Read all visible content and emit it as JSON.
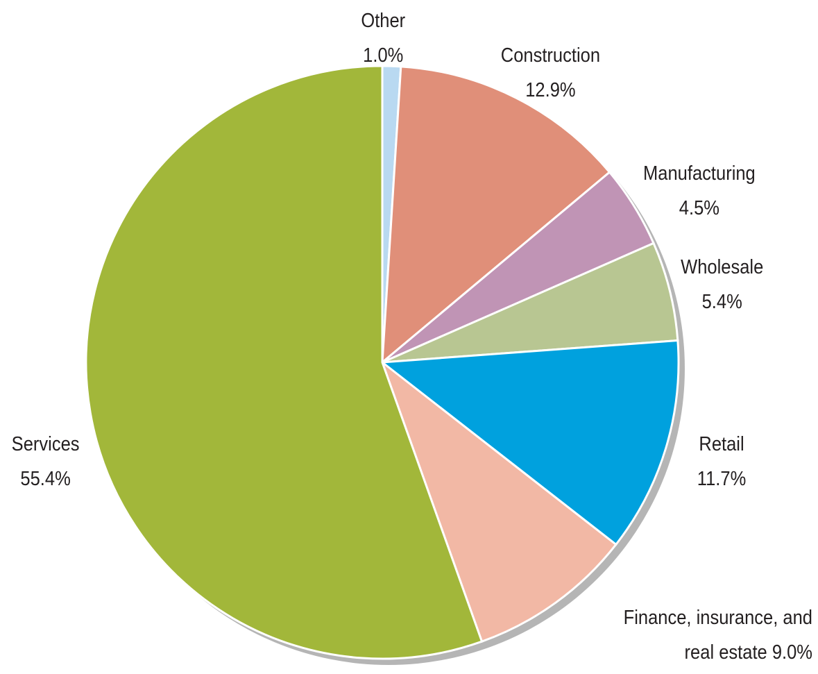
{
  "chart_data": {
    "type": "pie",
    "categories": [
      "Other",
      "Construction",
      "Manufacturing",
      "Wholesale",
      "Retail",
      "Finance, insurance, and real estate",
      "Services"
    ],
    "values": [
      1.0,
      12.9,
      4.5,
      5.4,
      11.7,
      9.0,
      55.4
    ],
    "value_labels": [
      "1.0%",
      "12.9%",
      "4.5%",
      "5.4%",
      "11.7%",
      "9.0%",
      "55.4%"
    ],
    "colors": [
      "#b9d9f1",
      "#e08f79",
      "#c094b5",
      "#b8c692",
      "#00a1de",
      "#f2b8a5",
      "#a2b73a"
    ]
  }
}
